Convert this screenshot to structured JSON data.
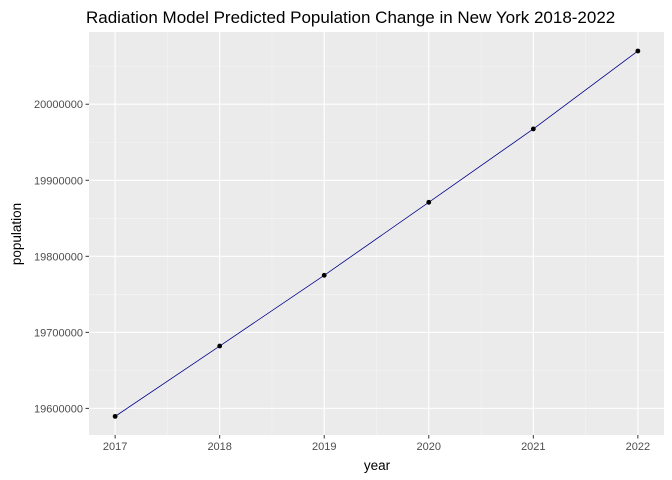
{
  "chart_data": {
    "type": "line",
    "title": "Radiation Model Predicted Population Change in New York 2018-2022",
    "xlabel": "year",
    "ylabel": "population",
    "x": [
      2017,
      2018,
      2019,
      2020,
      2021,
      2022
    ],
    "series": [
      {
        "values": [
          19589500,
          19682000,
          19775000,
          19871000,
          19967500,
          20070000
        ]
      }
    ],
    "xlim": [
      2016.75,
      2022.25
    ],
    "ylim": [
      19565000,
      20095000
    ],
    "x_ticks": [
      2017,
      2018,
      2019,
      2020,
      2021,
      2022
    ],
    "x_tick_labels": [
      "2017",
      "2018",
      "2019",
      "2020",
      "2021",
      "2022"
    ],
    "y_ticks": [
      19600000,
      19700000,
      19800000,
      19900000,
      20000000
    ],
    "y_tick_labels": [
      "19600000",
      "19700000",
      "19800000",
      "19900000",
      "20000000"
    ],
    "grid": true,
    "legend": "none",
    "colors": {
      "panel_background": "#ebebeb",
      "grid_major": "#ffffff",
      "grid_minor": "#f5f5f5",
      "line": "#00008b",
      "point": "#000000",
      "tick_text": "#4d4d4d",
      "tick_mark": "#333333"
    }
  }
}
